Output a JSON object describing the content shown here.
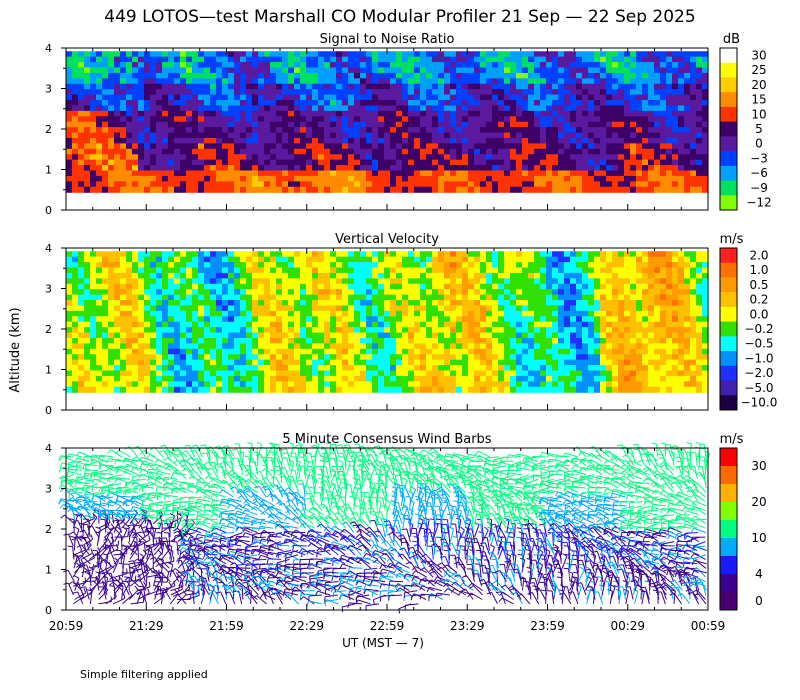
{
  "title": "449 LOTOS—test Marshall CO Modular Profiler 21 Sep — 22 Sep 2025",
  "footer_note": "Simple filtering applied",
  "y_axis_label": "Altitude (km)",
  "x_axis_label": "UT  (MST — 7)",
  "x_ticks": [
    "20:59",
    "21:29",
    "21:59",
    "22:29",
    "22:59",
    "23:29",
    "23:59",
    "00:29",
    "00:59"
  ],
  "chart_data": [
    {
      "type": "heatmap",
      "title": "Signal to Noise Ratio",
      "units": "dB",
      "ylabel": "Altitude (km)",
      "ylim": [
        0,
        4
      ],
      "yticks": [
        0,
        1,
        2,
        3,
        4
      ],
      "xlabel": "UT  (MST — 7)",
      "xlim": [
        "20:59",
        "00:59"
      ],
      "colorbar": {
        "labels": [
          "30",
          "25",
          "20",
          "15",
          "10",
          "5",
          "0",
          "−3",
          "−6",
          "−9",
          "−12"
        ],
        "colors": [
          "#ffffff",
          "#ffff00",
          "#ffcc00",
          "#ff8c00",
          "#ff3300",
          "#3d0066",
          "#5a1aa0",
          "#0040ff",
          "#00a0ff",
          "#00e060",
          "#80ff00"
        ]
      },
      "description_levels": {
        "0-1 km": "10 to 20 dB",
        "1-2 km": "0 to 10 dB",
        "2-3.2 km": "-3 to 5 dB",
        "3.2-4 km": "-12 to -3 dB"
      }
    },
    {
      "type": "heatmap",
      "title": "Vertical Velocity",
      "units": "m/s",
      "ylabel": "Altitude (km)",
      "ylim": [
        0,
        4
      ],
      "yticks": [
        0,
        1,
        2,
        3,
        4
      ],
      "xlabel": "UT  (MST — 7)",
      "xlim": [
        "20:59",
        "00:59"
      ],
      "colorbar": {
        "labels": [
          "2.0",
          "1.0",
          "0.5",
          "0.2",
          "0.0",
          "−0.2",
          "−0.5",
          "−1.0",
          "−2.0",
          "−5.0",
          "−10.0"
        ],
        "colors": [
          "#ff2020",
          "#ff7000",
          "#ff9a00",
          "#ffc000",
          "#ffff00",
          "#30e000",
          "#00ffff",
          "#0090ff",
          "#2030ff",
          "#4020b0",
          "#1a0040"
        ]
      }
    },
    {
      "type": "scatter",
      "title": "5 Minute Consensus Wind Barbs",
      "units": "m/s",
      "ylabel": "Altitude (km)",
      "ylim": [
        0,
        4
      ],
      "yticks": [
        0,
        1,
        2,
        3,
        4
      ],
      "xlabel": "UT  (MST — 7)",
      "xlim": [
        "20:59",
        "00:59"
      ],
      "colorbar": {
        "labels": [
          "30",
          "20",
          "10",
          "4",
          "0"
        ],
        "colors": [
          "#ff0000",
          "#ff6a00",
          "#ffb000",
          "#80ff00",
          "#00ff80",
          "#00aaff",
          "#1a1aff",
          "#3a0090",
          "#4a0070"
        ]
      },
      "speed_ranges_ms": {
        "0-1.5 km": [
          0,
          10
        ],
        "1.5-3 km": [
          0,
          12
        ],
        "3-4 km": [
          4,
          12
        ]
      }
    }
  ]
}
